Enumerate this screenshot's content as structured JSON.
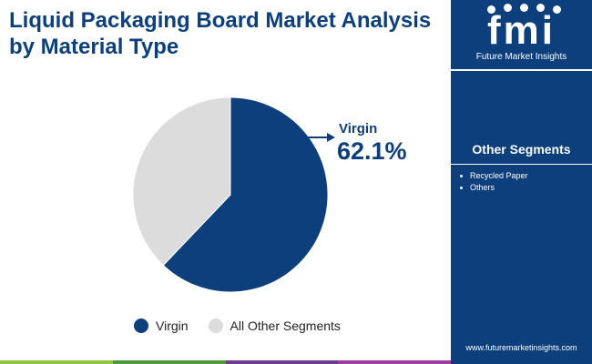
{
  "title": "Liquid Packaging Board Market Analysis by Material Type",
  "chart_data": {
    "type": "pie",
    "slices": [
      {
        "label": "Virgin",
        "value": 62.1,
        "color": "#0d3f7c"
      },
      {
        "label": "All Other Segments",
        "value": 37.9,
        "color": "#dcdcdc"
      }
    ],
    "annotation": {
      "label": "Virgin",
      "value_text": "62.1%"
    },
    "legend": {
      "position": "bottom",
      "entries": [
        "Virgin",
        "All Other Segments"
      ]
    }
  },
  "sidebar": {
    "logo_letters": "fmi",
    "logo_subtitle": "Future Market Insights",
    "segments_title": "Other Segments",
    "segments": [
      "Recycled Paper",
      "Others"
    ],
    "url": "www.futuremarketinsights.com"
  },
  "colors": {
    "primary": "#0d3f7c",
    "secondary": "#dcdcdc",
    "bar": [
      "#8dc63f",
      "#4b9b3d",
      "#6f3b8f",
      "#9c3fa0"
    ]
  }
}
